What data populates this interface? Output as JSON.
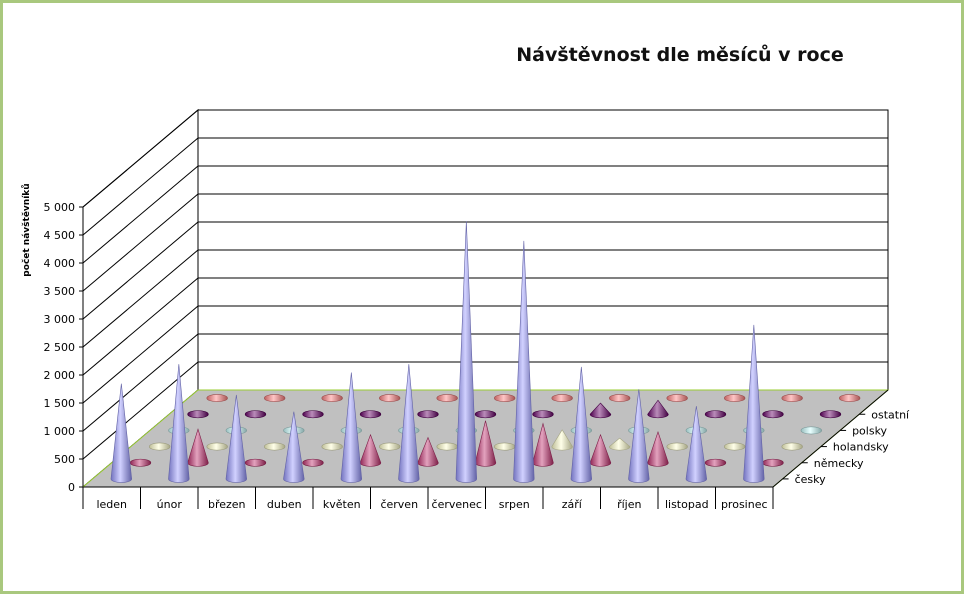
{
  "chart_data": {
    "type": "3d-cone",
    "title": "Návštěvnost dle měsíců v roce",
    "ylabel": "počet návštěvníků",
    "ylim": [
      0,
      5000
    ],
    "yticks": [
      "0",
      "500",
      "1 000",
      "1 500",
      "2 000",
      "2 500",
      "3 000",
      "3 500",
      "4 000",
      "4 500",
      "5 000"
    ],
    "categories": [
      "leden",
      "únor",
      "březen",
      "duben",
      "květen",
      "červen",
      "červenec",
      "srpen",
      "září",
      "říjen",
      "listopad",
      "prosinec"
    ],
    "series": [
      {
        "name": "česky",
        "color": "#9999ff",
        "values": [
          1700,
          2050,
          1500,
          1200,
          1900,
          2050,
          4600,
          4250,
          2000,
          1600,
          1300,
          2750
        ]
      },
      {
        "name": "německy",
        "color": "#c0306e",
        "values": [
          130,
          600,
          110,
          130,
          500,
          450,
          750,
          700,
          500,
          550,
          50,
          120
        ]
      },
      {
        "name": "holandsky",
        "color": "#ffffcc",
        "values": [
          40,
          40,
          40,
          40,
          40,
          40,
          40,
          300,
          150,
          40,
          40,
          40
        ]
      },
      {
        "name": "polsky",
        "color": "#ccffff",
        "values": [
          30,
          30,
          30,
          30,
          30,
          30,
          30,
          30,
          30,
          30,
          30,
          30
        ]
      },
      {
        "name": "ostatní",
        "color": "#660066",
        "values": [
          30,
          30,
          30,
          30,
          30,
          30,
          50,
          200,
          250,
          30,
          30,
          30
        ]
      }
    ],
    "series_depth_order": [
      "ostatní",
      "polsky",
      "holandsky",
      "německy",
      "česky"
    ],
    "extra_row_color": "#ff8080",
    "grid": true,
    "floor_color": "#c0c0c0"
  }
}
